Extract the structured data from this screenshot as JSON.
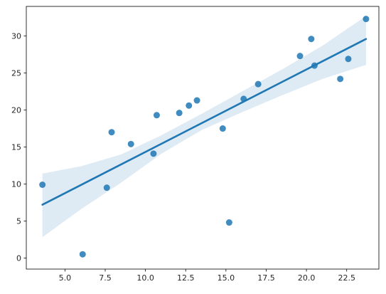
{
  "chart_data": {
    "type": "scatter",
    "title": "",
    "xlabel": "",
    "ylabel": "",
    "xlim": [
      2.6,
      24.5
    ],
    "ylim": [
      -1.5,
      34.0
    ],
    "x_ticks": [
      5.0,
      7.5,
      10.0,
      12.5,
      15.0,
      17.5,
      20.0,
      22.5
    ],
    "x_tick_labels": [
      "5.0",
      "7.5",
      "10.0",
      "12.5",
      "15.0",
      "17.5",
      "20.0",
      "22.5"
    ],
    "y_ticks": [
      0,
      5,
      10,
      15,
      20,
      25,
      30
    ],
    "y_tick_labels": [
      "0",
      "5",
      "10",
      "15",
      "20",
      "25",
      "30"
    ],
    "grid": false,
    "points": [
      {
        "x": 3.6,
        "y": 9.9
      },
      {
        "x": 6.1,
        "y": 0.5
      },
      {
        "x": 7.6,
        "y": 9.5
      },
      {
        "x": 7.9,
        "y": 17.0
      },
      {
        "x": 9.1,
        "y": 15.4
      },
      {
        "x": 10.5,
        "y": 14.1
      },
      {
        "x": 10.7,
        "y": 19.3
      },
      {
        "x": 12.1,
        "y": 19.6
      },
      {
        "x": 12.7,
        "y": 20.6
      },
      {
        "x": 13.2,
        "y": 21.3
      },
      {
        "x": 14.8,
        "y": 17.5
      },
      {
        "x": 15.2,
        "y": 4.8
      },
      {
        "x": 16.1,
        "y": 21.5
      },
      {
        "x": 17.0,
        "y": 23.5
      },
      {
        "x": 19.6,
        "y": 27.3
      },
      {
        "x": 20.3,
        "y": 29.6
      },
      {
        "x": 20.5,
        "y": 26.0
      },
      {
        "x": 22.1,
        "y": 24.2
      },
      {
        "x": 22.6,
        "y": 26.9
      },
      {
        "x": 23.7,
        "y": 32.3
      }
    ],
    "regression_line": {
      "x": [
        3.6,
        23.7
      ],
      "y": [
        7.2,
        29.6
      ]
    },
    "confidence_band": {
      "x": [
        3.6,
        6.0,
        8.5,
        11.0,
        13.5,
        16.0,
        18.5,
        21.0,
        23.7
      ],
      "lower": [
        2.8,
        6.6,
        10.2,
        14.1,
        17.3,
        19.7,
        22.0,
        24.2,
        26.1
      ],
      "upper": [
        11.4,
        12.4,
        14.0,
        16.6,
        19.5,
        22.5,
        25.5,
        28.7,
        32.7
      ]
    },
    "colors": {
      "points": "#1f77b4",
      "line": "#1f77b4",
      "band": "#1f77b4",
      "axes": "#000000",
      "tick_text": "#262626"
    }
  }
}
